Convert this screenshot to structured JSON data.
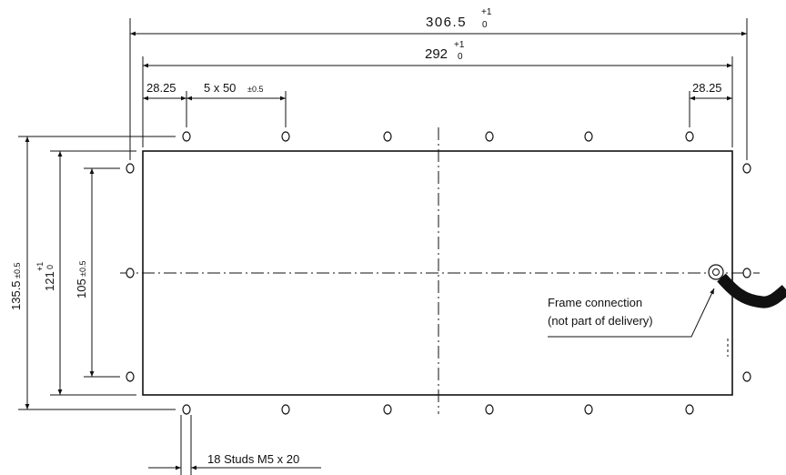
{
  "dimensions": {
    "overall_width": {
      "nominal": "306.5",
      "tol_upper": "+1",
      "tol_lower": "0"
    },
    "plate_width": {
      "nominal": "292",
      "tol_upper": "+1",
      "tol_lower": "0"
    },
    "edge_offset_left": "28.25",
    "edge_offset_right": "28.25",
    "stud_pitch": {
      "label": "5 x 50",
      "tol": "±0.5"
    },
    "overall_height": {
      "nominal": "135.5",
      "tol": "±0.5"
    },
    "plate_height": {
      "nominal": "121",
      "tol_upper": "+1",
      "tol_lower": "0"
    },
    "stud_row_spacing": {
      "nominal": "105",
      "tol": "±0.5"
    }
  },
  "callouts": {
    "frame_connection_line1": "Frame connection",
    "frame_connection_line2": "(not part of delivery)",
    "studs": "18 Studs M5 x 20"
  }
}
